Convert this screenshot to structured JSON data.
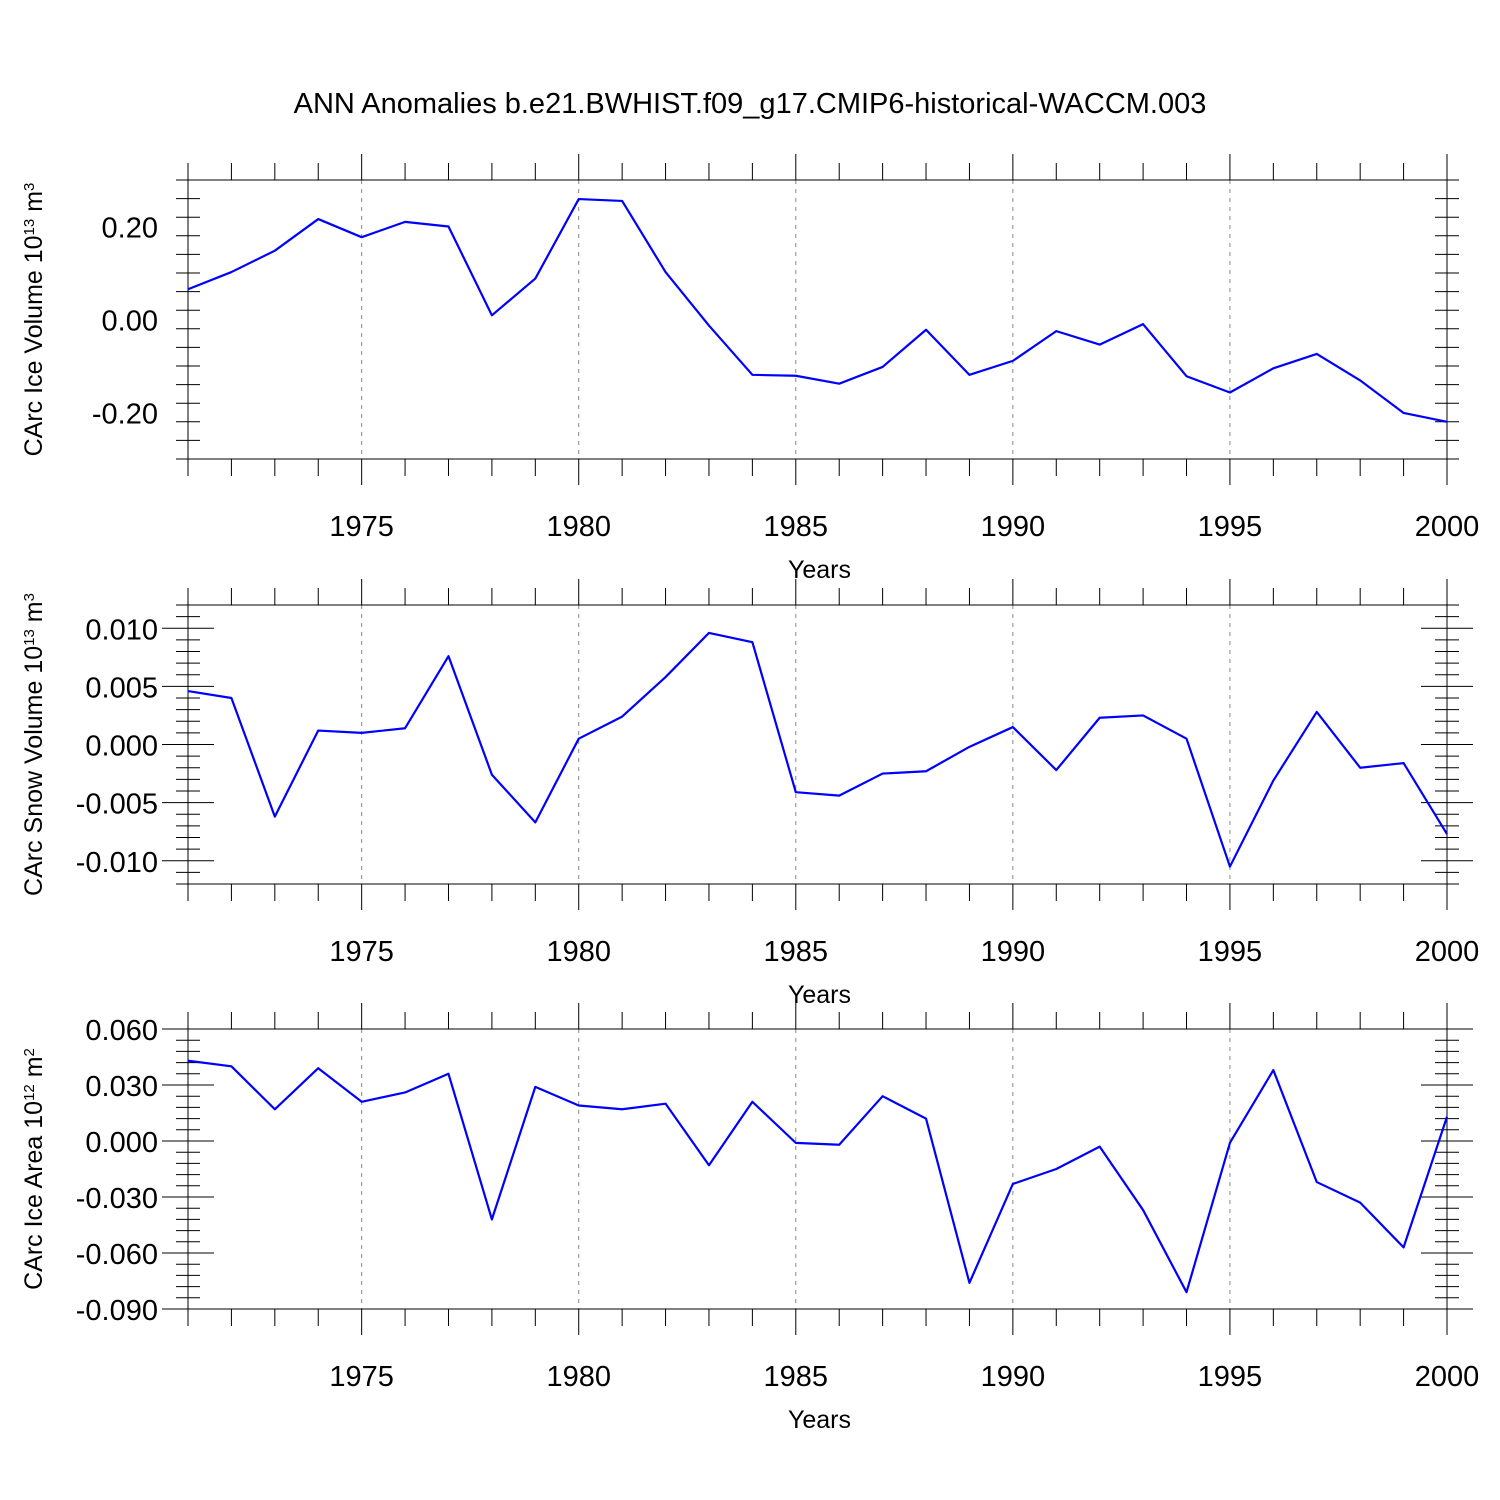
{
  "title": "ANN Anomalies b.e21.BWHIST.f09_g17.CMIP6-historical-WACCM.003",
  "colors": {
    "line": "#0000ff",
    "grid": "#888888",
    "axis": "#000000"
  },
  "chart_data": [
    {
      "type": "line",
      "ylabel": "CArc Ice Volume 10",
      "ylabel_exp": "13",
      "ylabel_unit": "m",
      "ylabel_unit_exp": "3",
      "xlabel": "Years",
      "xlim": [
        1971,
        2000
      ],
      "ylim": [
        -0.3,
        0.3
      ],
      "yticks": [
        -0.2,
        0.0,
        0.2
      ],
      "ytick_labels": [
        "-0.20",
        "0.00",
        "0.20"
      ],
      "xtick_labels": [
        "1975",
        "1980",
        "1985",
        "1990",
        "1995",
        "2000"
      ],
      "grid": "vertical dashed at major x ticks",
      "x": [
        1971,
        1972,
        1973,
        1974,
        1975,
        1976,
        1977,
        1978,
        1979,
        1980,
        1981,
        1982,
        1983,
        1984,
        1985,
        1986,
        1987,
        1988,
        1989,
        1990,
        1991,
        1992,
        1993,
        1994,
        1995,
        1996,
        1997,
        1998,
        1999,
        2000
      ],
      "series": [
        {
          "values": [
            0.065,
            0.102,
            0.148,
            0.216,
            0.177,
            0.21,
            0.2,
            0.009,
            0.088,
            0.259,
            0.255,
            0.102,
            -0.013,
            -0.119,
            -0.121,
            -0.138,
            -0.102,
            -0.022,
            -0.119,
            -0.089,
            -0.025,
            -0.054,
            -0.01,
            -0.122,
            -0.157,
            -0.105,
            -0.074,
            -0.131,
            -0.201,
            -0.22
          ]
        }
      ]
    },
    {
      "type": "line",
      "ylabel": "CArc Snow Volume 10",
      "ylabel_exp": "13",
      "ylabel_unit": "m",
      "ylabel_unit_exp": "3",
      "xlabel": "Years",
      "xlim": [
        1971,
        2000
      ],
      "ylim": [
        -0.012,
        0.012
      ],
      "yticks": [
        -0.01,
        -0.005,
        0.0,
        0.005,
        0.01
      ],
      "ytick_labels": [
        "-0.010",
        "-0.005",
        "0.000",
        "0.005",
        "0.010"
      ],
      "xtick_labels": [
        "1975",
        "1980",
        "1985",
        "1990",
        "1995",
        "2000"
      ],
      "grid": "vertical dashed at major x ticks",
      "x": [
        1971,
        1972,
        1973,
        1974,
        1975,
        1976,
        1977,
        1978,
        1979,
        1980,
        1981,
        1982,
        1983,
        1984,
        1985,
        1986,
        1987,
        1988,
        1989,
        1990,
        1991,
        1992,
        1993,
        1994,
        1995,
        1996,
        1997,
        1998,
        1999,
        2000
      ],
      "series": [
        {
          "values": [
            0.0046,
            0.004,
            -0.0062,
            0.0012,
            0.001,
            0.0014,
            0.0076,
            -0.0026,
            -0.0067,
            0.0005,
            0.0024,
            0.0058,
            0.0096,
            0.0088,
            -0.0041,
            -0.0044,
            -0.0025,
            -0.0023,
            -0.0002,
            0.0015,
            -0.0022,
            0.0023,
            0.0025,
            0.0005,
            -0.0105,
            -0.0031,
            0.0028,
            -0.002,
            -0.0016,
            -0.0077
          ]
        }
      ]
    },
    {
      "type": "line",
      "ylabel": "CArc Ice Area 10",
      "ylabel_exp": "12",
      "ylabel_unit": "m",
      "ylabel_unit_exp": "2",
      "xlabel": "Years",
      "xlim": [
        1971,
        2000
      ],
      "ylim": [
        -0.09,
        0.06
      ],
      "yticks": [
        -0.09,
        -0.06,
        -0.03,
        0.0,
        0.03,
        0.06
      ],
      "ytick_labels": [
        "-0.090",
        "-0.060",
        "-0.030",
        "0.000",
        "0.030",
        "0.060"
      ],
      "xtick_labels": [
        "1975",
        "1980",
        "1985",
        "1990",
        "1995",
        "2000"
      ],
      "grid": "vertical dashed at major x ticks",
      "x": [
        1971,
        1972,
        1973,
        1974,
        1975,
        1976,
        1977,
        1978,
        1979,
        1980,
        1981,
        1982,
        1983,
        1984,
        1985,
        1986,
        1987,
        1988,
        1989,
        1990,
        1991,
        1992,
        1993,
        1994,
        1995,
        1996,
        1997,
        1998,
        1999,
        2000
      ],
      "series": [
        {
          "values": [
            0.043,
            0.04,
            0.017,
            0.039,
            0.021,
            0.026,
            0.036,
            -0.042,
            0.029,
            0.019,
            0.017,
            0.02,
            -0.013,
            0.021,
            -0.001,
            -0.002,
            0.024,
            0.012,
            -0.076,
            -0.023,
            -0.015,
            -0.003,
            -0.037,
            -0.081,
            -0.001,
            0.038,
            -0.022,
            -0.033,
            -0.057,
            0.013
          ]
        }
      ]
    }
  ]
}
